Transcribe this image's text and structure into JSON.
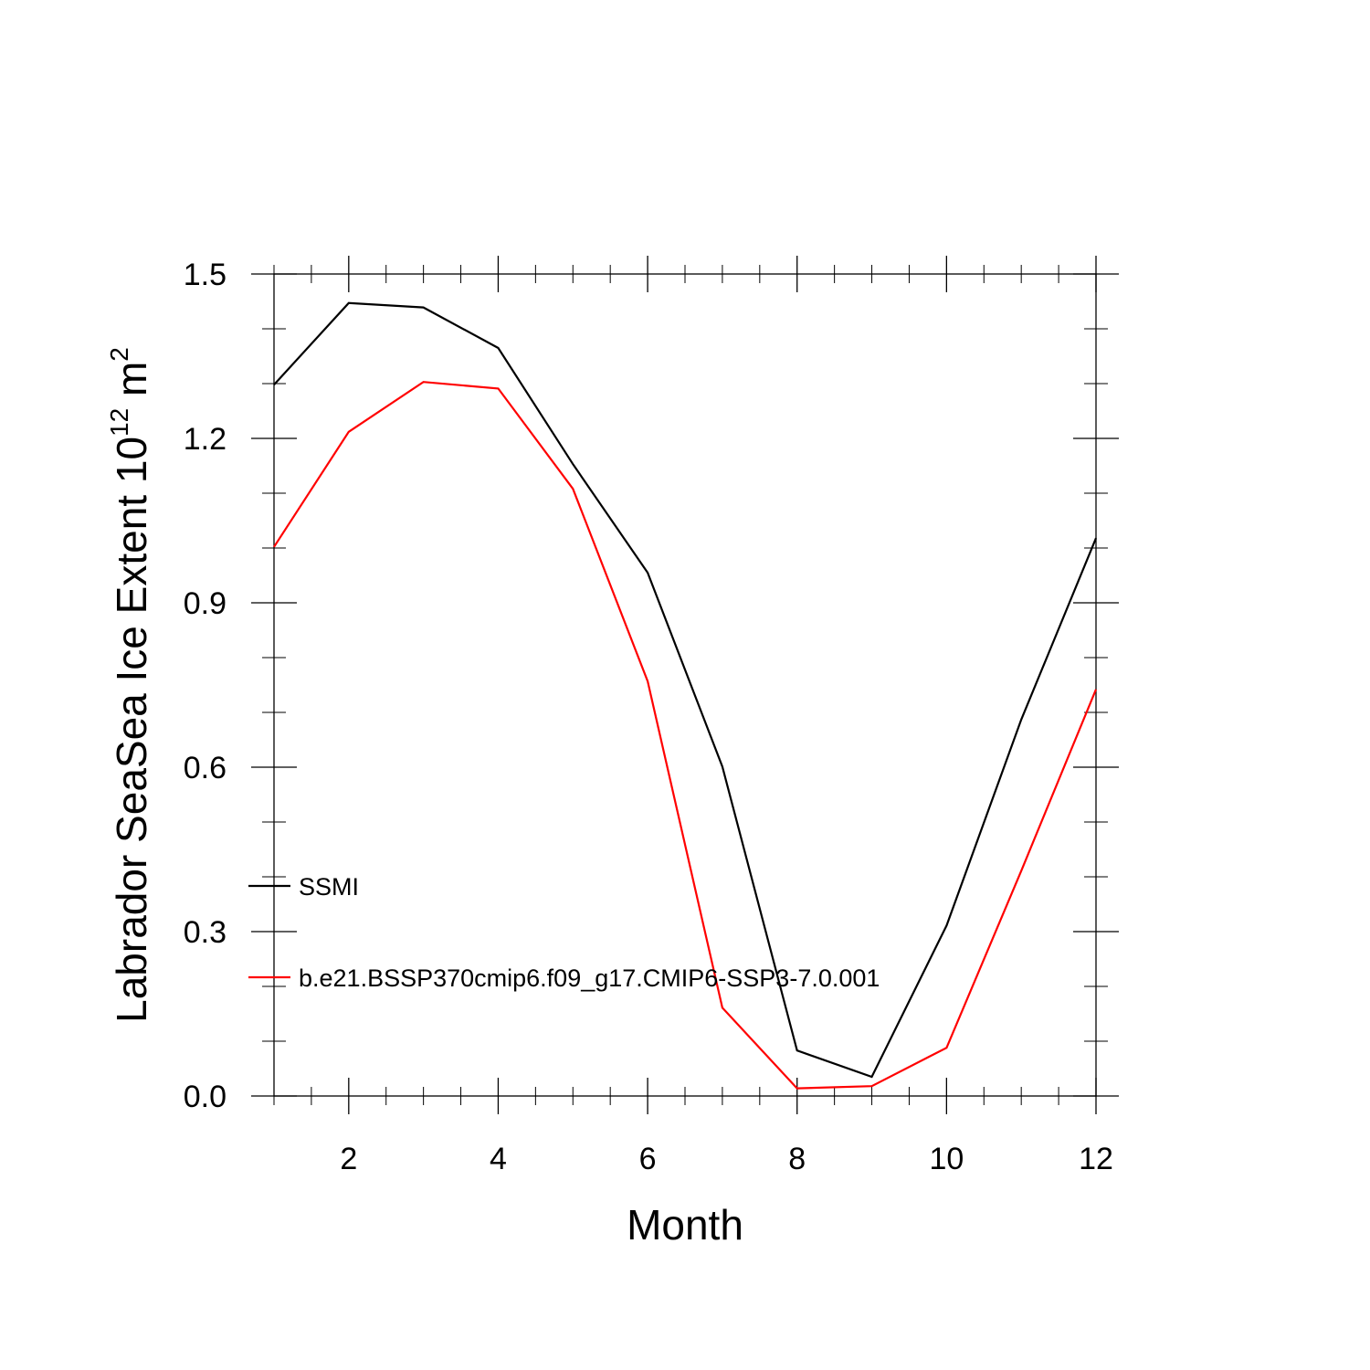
{
  "chart_data": {
    "type": "line",
    "title": "",
    "xlabel": "Month",
    "ylabel": {
      "text": "Labrador SeaSea Ice Extent 10",
      "superscript": "12",
      "unit": "m",
      "unit_superscript": "2"
    },
    "xlim": [
      1,
      12
    ],
    "ylim": [
      0,
      1.5
    ],
    "x_ticks": [
      2,
      4,
      6,
      8,
      10,
      12
    ],
    "x_tick_labels": [
      "2",
      "4",
      "6",
      "8",
      "10",
      "12"
    ],
    "y_ticks": [
      0,
      0.3,
      0.6,
      0.9,
      1.2,
      1.5
    ],
    "y_tick_labels": [
      "0.0",
      "0.3",
      "0.6",
      "0.9",
      "1.2",
      "1.5"
    ],
    "grid": false,
    "legend_position": "lower-left inside",
    "x": [
      1,
      2,
      3,
      4,
      5,
      6,
      7,
      8,
      9,
      10,
      11,
      12
    ],
    "series": [
      {
        "name": "SSMI",
        "color": "#000000",
        "values": [
          1.298,
          1.447,
          1.439,
          1.365,
          1.153,
          0.955,
          0.601,
          0.083,
          0.035,
          0.311,
          0.687,
          1.018
        ]
      },
      {
        "name": "b.e21.BSSP370cmip6.f09_g17.CMIP6-SSP3-7.0.001",
        "color": "#ff0000",
        "values": [
          1.002,
          1.212,
          1.303,
          1.291,
          1.108,
          0.757,
          0.161,
          0.014,
          0.018,
          0.088,
          0.411,
          0.742
        ]
      }
    ]
  }
}
